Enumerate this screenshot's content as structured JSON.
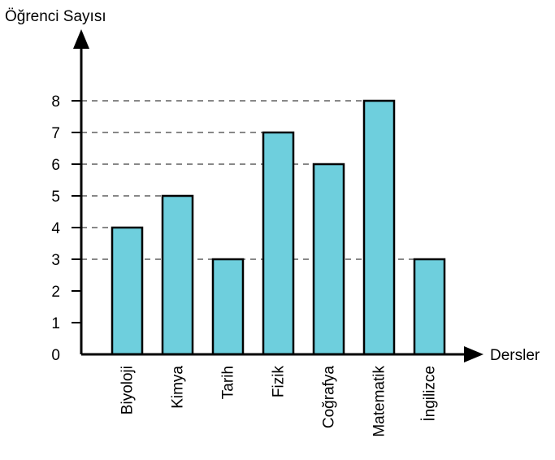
{
  "chart_data": {
    "type": "bar",
    "ylabel": "Öğrenci Sayısı",
    "xlabel": "Dersler",
    "categories": [
      "Biyoloji",
      "Kimya",
      "Tarih",
      "Fizik",
      "Coğrafya",
      "Matematik",
      "İngilizce"
    ],
    "values": [
      4,
      5,
      3,
      7,
      6,
      8,
      3
    ],
    "yticks": [
      "0",
      "1",
      "2",
      "3",
      "4",
      "5",
      "6",
      "7",
      "8"
    ],
    "ylim": [
      0,
      8
    ],
    "grid": "dashed lines at bar tops",
    "colors": {
      "bar_fill": "#6ecfdd",
      "bar_stroke": "#000000",
      "axis": "#000000",
      "gridline": "#888888"
    }
  }
}
